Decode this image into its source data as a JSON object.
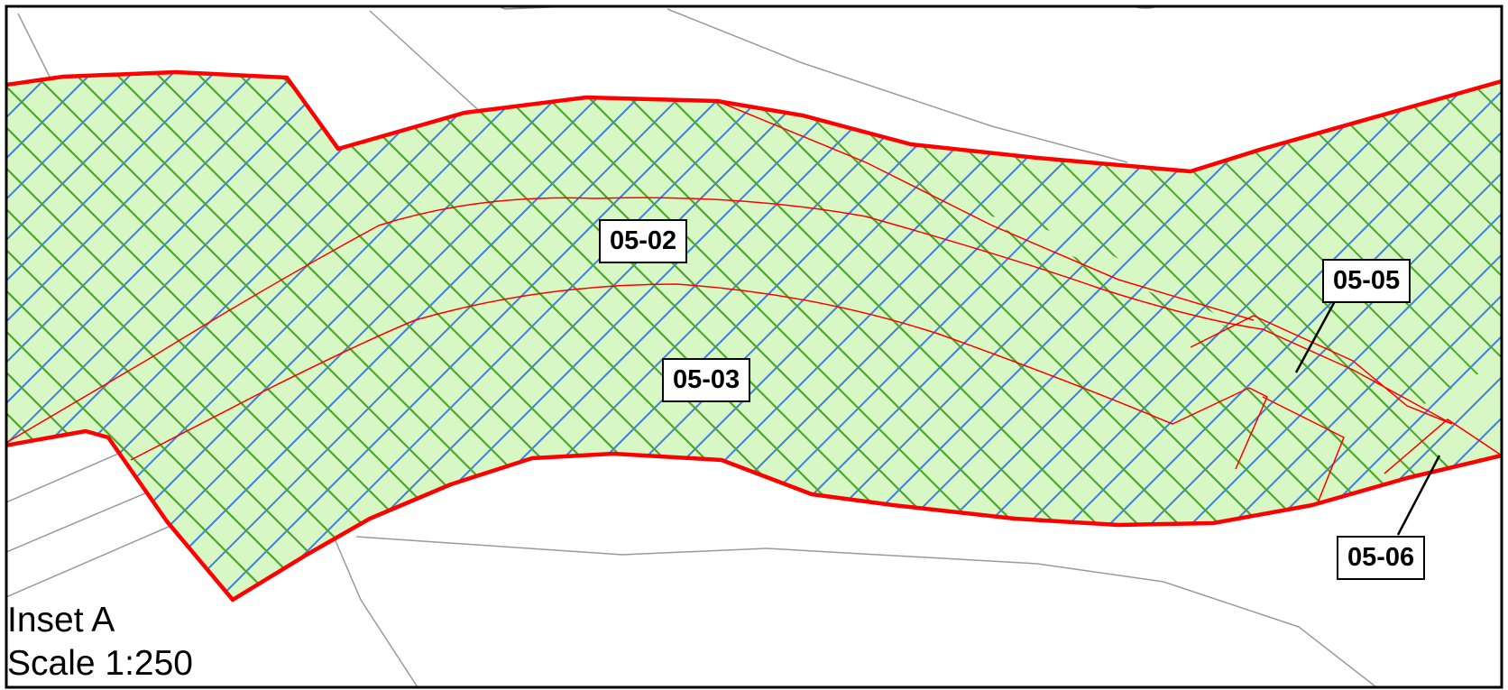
{
  "map": {
    "inset_title": "Inset A",
    "scale_text": "Scale 1:250",
    "colors": {
      "frame": "#000000",
      "boundary": "#ff0000",
      "fill": "#d7f7c5",
      "hatch_blue": "#3f7fe0",
      "hatch_green": "#4ca62e",
      "background_lines": "#9a9a9a"
    },
    "parcel_labels": [
      {
        "id": "05-02",
        "text": "05-02"
      },
      {
        "id": "05-03",
        "text": "05-03"
      },
      {
        "id": "05-05",
        "text": "05-05"
      },
      {
        "id": "05-06",
        "text": "05-06"
      }
    ]
  }
}
